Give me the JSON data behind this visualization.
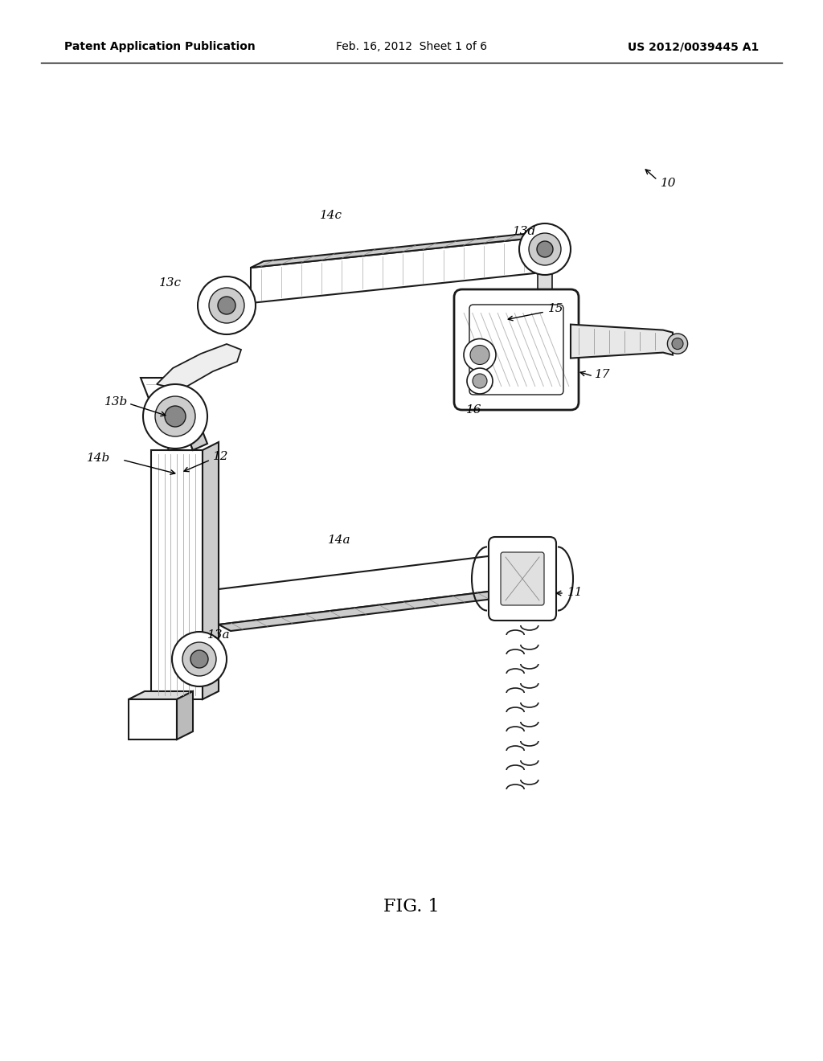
{
  "background_color": "#ffffff",
  "header_left": "Patent Application Publication",
  "header_center": "Feb. 16, 2012  Sheet 1 of 6",
  "header_right": "US 2012/0039445 A1",
  "footer_label": "FIG. 1",
  "header_font_size": 10,
  "footer_font_size": 16
}
